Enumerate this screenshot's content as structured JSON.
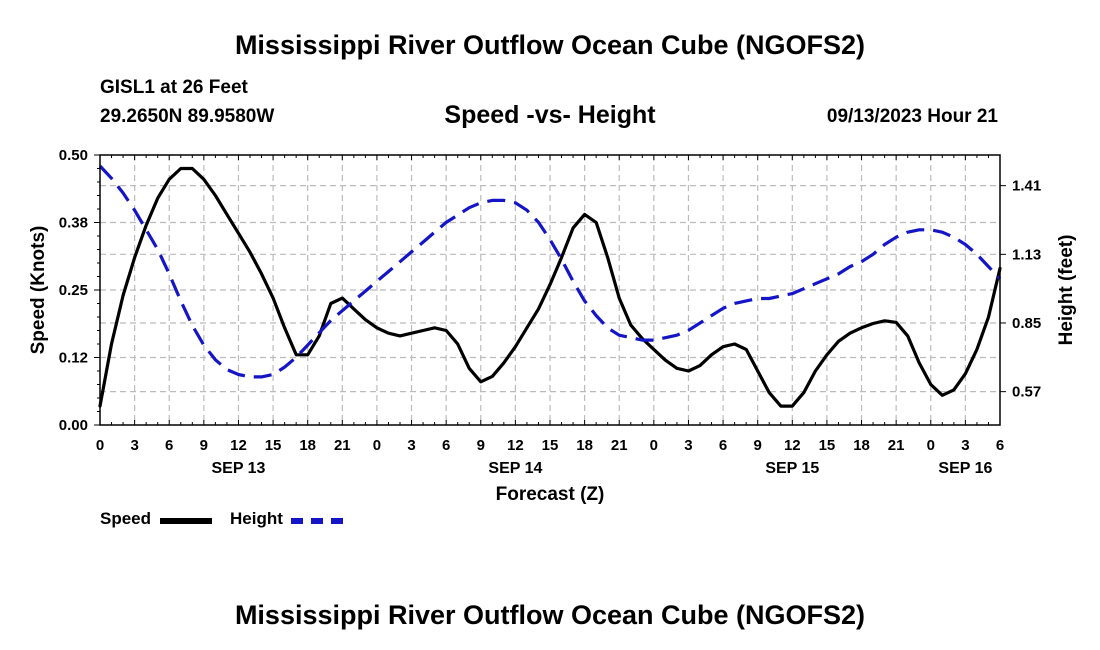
{
  "title": "Mississippi River Outflow Ocean Cube (NGOFS2)",
  "station": "GISL1 at 26 Feet",
  "coords": "29.2650N  89.9580W",
  "subtitle": "Speed -vs- Height",
  "datetime": "09/13/2023 Hour 21",
  "legend": {
    "speed": "Speed",
    "height": "Height"
  },
  "colors": {
    "speed": "#000000",
    "height": "#1515c8",
    "grid": "#bbbbbb"
  },
  "chart_data": {
    "type": "line",
    "xlabel": "Forecast (Z)",
    "ylabel_left": "Speed (Knots)",
    "ylabel_right": "Height (feet)",
    "xlim_hours": [
      0,
      78
    ],
    "ylim_left": [
      0,
      0.5
    ],
    "ylim_right": [
      0.434,
      1.535
    ],
    "left_ticks": [
      {
        "v": 0.0,
        "label": "0.00"
      },
      {
        "v": 0.125,
        "label": "0.12"
      },
      {
        "v": 0.25,
        "label": "0.25"
      },
      {
        "v": 0.375,
        "label": "0.38"
      },
      {
        "v": 0.5,
        "label": "0.50"
      }
    ],
    "right_ticks": [
      {
        "v": 0.57,
        "label": "0.57"
      },
      {
        "v": 0.85,
        "label": "0.85"
      },
      {
        "v": 1.13,
        "label": "1.13"
      },
      {
        "v": 1.41,
        "label": "1.41"
      }
    ],
    "x_tick_labels": [
      "0",
      "3",
      "6",
      "9",
      "12",
      "15",
      "18",
      "21",
      "0",
      "3",
      "6",
      "9",
      "12",
      "15",
      "18",
      "21",
      "0",
      "3",
      "6",
      "9",
      "12",
      "15",
      "18",
      "21",
      "0",
      "3",
      "6"
    ],
    "day_labels": [
      {
        "hour": 12,
        "label": "SEP 13"
      },
      {
        "hour": 36,
        "label": "SEP 14"
      },
      {
        "hour": 60,
        "label": "SEP 15"
      },
      {
        "hour": 75,
        "label": "SEP 16"
      }
    ],
    "series": [
      {
        "name": "Speed",
        "axis": "left",
        "style": "solid",
        "x": [
          0,
          1,
          2,
          3,
          4,
          5,
          6,
          7,
          8,
          9,
          10,
          11,
          12,
          13,
          14,
          15,
          16,
          17,
          18,
          19,
          20,
          21,
          22,
          23,
          24,
          25,
          26,
          27,
          28,
          29,
          30,
          31,
          32,
          33,
          34,
          35,
          36,
          37,
          38,
          39,
          40,
          41,
          42,
          43,
          44,
          45,
          46,
          47,
          48,
          49,
          50,
          51,
          52,
          53,
          54,
          55,
          56,
          57,
          58,
          59,
          60,
          61,
          62,
          63,
          64,
          65,
          66,
          67,
          68,
          69,
          70,
          71,
          72,
          73,
          74,
          75,
          76,
          77,
          78
        ],
        "y": [
          0.035,
          0.15,
          0.24,
          0.31,
          0.37,
          0.42,
          0.455,
          0.475,
          0.475,
          0.455,
          0.425,
          0.39,
          0.355,
          0.32,
          0.28,
          0.235,
          0.18,
          0.13,
          0.13,
          0.165,
          0.225,
          0.235,
          0.215,
          0.195,
          0.18,
          0.17,
          0.165,
          0.17,
          0.175,
          0.18,
          0.175,
          0.15,
          0.105,
          0.08,
          0.09,
          0.115,
          0.145,
          0.18,
          0.215,
          0.26,
          0.31,
          0.365,
          0.39,
          0.375,
          0.31,
          0.235,
          0.185,
          0.16,
          0.14,
          0.12,
          0.105,
          0.1,
          0.11,
          0.13,
          0.145,
          0.15,
          0.14,
          0.1,
          0.06,
          0.035,
          0.035,
          0.06,
          0.1,
          0.13,
          0.155,
          0.17,
          0.18,
          0.188,
          0.193,
          0.19,
          0.165,
          0.115,
          0.075,
          0.055,
          0.065,
          0.095,
          0.14,
          0.2,
          0.29
        ]
      },
      {
        "name": "Height",
        "axis": "right",
        "style": "dashed",
        "x": [
          0,
          1,
          2,
          3,
          4,
          5,
          6,
          7,
          8,
          9,
          10,
          11,
          12,
          13,
          14,
          15,
          16,
          17,
          18,
          19,
          20,
          21,
          22,
          23,
          24,
          25,
          26,
          27,
          28,
          29,
          30,
          31,
          32,
          33,
          34,
          35,
          36,
          37,
          38,
          39,
          40,
          41,
          42,
          43,
          44,
          45,
          46,
          47,
          48,
          49,
          50,
          51,
          52,
          53,
          54,
          55,
          56,
          57,
          58,
          59,
          60,
          61,
          62,
          63,
          64,
          65,
          66,
          67,
          68,
          69,
          70,
          71,
          72,
          73,
          74,
          75,
          76,
          77,
          78
        ],
        "y": [
          1.49,
          1.44,
          1.38,
          1.31,
          1.23,
          1.15,
          1.05,
          0.94,
          0.84,
          0.76,
          0.7,
          0.66,
          0.64,
          0.63,
          0.63,
          0.64,
          0.67,
          0.71,
          0.76,
          0.81,
          0.86,
          0.9,
          0.94,
          0.98,
          1.02,
          1.06,
          1.1,
          1.14,
          1.18,
          1.22,
          1.26,
          1.29,
          1.32,
          1.34,
          1.35,
          1.35,
          1.34,
          1.31,
          1.26,
          1.19,
          1.11,
          1.02,
          0.94,
          0.88,
          0.83,
          0.8,
          0.79,
          0.78,
          0.78,
          0.79,
          0.8,
          0.82,
          0.85,
          0.88,
          0.91,
          0.93,
          0.94,
          0.95,
          0.95,
          0.96,
          0.97,
          0.99,
          1.01,
          1.03,
          1.05,
          1.08,
          1.1,
          1.13,
          1.17,
          1.2,
          1.22,
          1.23,
          1.23,
          1.22,
          1.2,
          1.17,
          1.13,
          1.08,
          1.03
        ]
      }
    ]
  }
}
